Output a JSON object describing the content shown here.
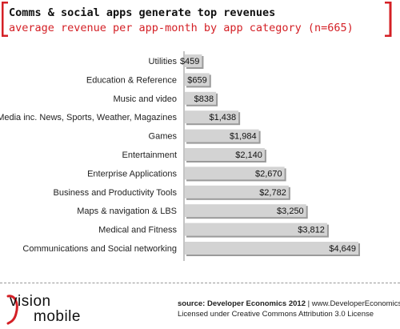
{
  "header": {
    "title": "Comms & social apps generate top revenues",
    "subtitle": "average revenue per app-month by app category (n=665)"
  },
  "footer": {
    "brand_line1": "vision",
    "brand_line2": "mobile",
    "source_bold": "source: Developer Economics 2012",
    "source_rest": " | www.DeveloperEconomics.com",
    "license": "Licensed under Creative Commons Attribution 3.0 License"
  },
  "colors": {
    "bar_fill": "#d3d3d3",
    "bar_shadow": "#9a9a9a",
    "accent_red": "#d42026"
  },
  "chart_data": {
    "type": "bar",
    "orientation": "horizontal",
    "categories": [
      "Utilities",
      "Education & Reference",
      "Music and video",
      "Media inc. News, Sports, Weather, Magazines",
      "Games",
      "Entertainment",
      "Enterprise Applications",
      "Business and Productivity Tools",
      "Maps & navigation & LBS",
      "Medical and Fitness",
      "Communications and Social networking"
    ],
    "values": [
      459,
      659,
      838,
      1438,
      1984,
      2140,
      2670,
      2782,
      3250,
      3812,
      4649
    ],
    "value_labels": [
      "$459",
      "$659",
      "$838",
      "$1,438",
      "$1,984",
      "$2,140",
      "$2,670",
      "$2,782",
      "$3,250",
      "$3,812",
      "$4,649"
    ],
    "title": "Comms & social apps generate top revenues",
    "subtitle": "average revenue per app-month by app category (n=665)",
    "xlabel": "",
    "ylabel": "",
    "xlim": [
      0,
      4649
    ],
    "grid": false,
    "legend": "none"
  }
}
